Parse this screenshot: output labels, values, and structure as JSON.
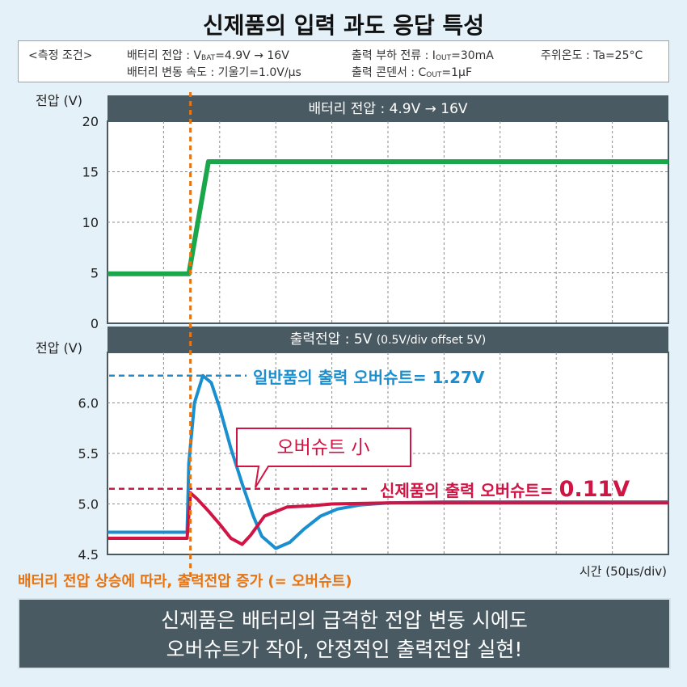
{
  "title": "신제품의 입력 과도 응답 특성",
  "conditions": {
    "label": "<측정 조건>",
    "battery_voltage_prefix": "배터리 전압 : V",
    "battery_voltage_sub": "BAT",
    "battery_voltage_value": "=4.9V → 16V",
    "load_current_prefix": "출력 부하 전류 : I",
    "load_current_sub": "OUT",
    "load_current_value": "=30mA",
    "ambient": "주위온도 : Ta=25°C",
    "slew": "배터리 변동 속도 : 기울기=1.0V/μs",
    "cap_prefix": "출력 콘덴서 : C",
    "cap_sub": "OUT",
    "cap_value": "=1μF"
  },
  "callout": "오버슈트 小",
  "input_note": "배터리 전압 상승에 따라, 출력전압 증가 (= 오버슈트)",
  "summary_line1": "신제품은 배터리의 급격한 전압 변동 시에도",
  "summary_line2": "오버슈트가 작아, 안정적인 출력전압 실현!",
  "colors": {
    "battery": "#1aa64a",
    "conventional": "#1a8fd0",
    "new_product": "#d01444",
    "orange": "#e8730f",
    "plot_bg": "#ffffff",
    "header_bg": "#4a5a63"
  },
  "chart_data": [
    {
      "type": "line",
      "header": "배터리 전압 : 4.9V → 16V",
      "ylabel": "전압 (V)",
      "ylim": [
        0,
        20
      ],
      "yticks": [
        "0",
        "5",
        "10",
        "15",
        "20"
      ],
      "xlim": [
        0,
        10
      ],
      "grid": true,
      "series": [
        {
          "x": [
            0,
            1.45,
            1.8,
            10
          ],
          "y": [
            4.9,
            4.9,
            16.0,
            16.0
          ]
        }
      ]
    },
    {
      "type": "line",
      "header_main": "출력전압 : 5V",
      "header_sub": "(0.5V/div offset 5V)",
      "ylabel": "전압 (V)",
      "xlabel": "시간 (50μs/div)",
      "ylim": [
        4.5,
        6.5
      ],
      "yticks": [
        "4.5",
        "5.0",
        "5.5",
        "6.0"
      ],
      "xlim": [
        0,
        10
      ],
      "grid": true,
      "annotations": [
        {
          "text": "일반품의 출력 오버슈트= 1.27V",
          "y": 6.27
        },
        {
          "text": "신제품의 출력 오버슈트= ",
          "value_text": "0.11V",
          "y": 5.15
        }
      ],
      "series": [
        {
          "name": "일반품",
          "x": [
            0,
            1.42,
            1.45,
            1.55,
            1.7,
            1.85,
            2.0,
            2.2,
            2.4,
            2.6,
            2.75,
            3.0,
            3.25,
            3.5,
            3.8,
            4.1,
            4.5,
            5.0,
            6.0,
            7.0,
            8.0,
            10.0
          ],
          "y": [
            4.72,
            4.72,
            5.4,
            6.0,
            6.27,
            6.2,
            5.95,
            5.55,
            5.2,
            4.88,
            4.68,
            4.56,
            4.62,
            4.75,
            4.88,
            4.95,
            4.99,
            5.01,
            5.02,
            5.02,
            5.02,
            5.02
          ]
        },
        {
          "name": "신제품",
          "x": [
            0,
            1.42,
            1.48,
            1.6,
            1.8,
            2.0,
            2.2,
            2.4,
            2.55,
            2.8,
            3.2,
            3.6,
            4.0,
            5.0,
            6.0,
            7.0,
            8.0,
            10.0
          ],
          "y": [
            4.66,
            4.66,
            5.11,
            5.05,
            4.93,
            4.8,
            4.66,
            4.6,
            4.69,
            4.88,
            4.97,
            4.98,
            5.0,
            5.01,
            5.01,
            5.01,
            5.01,
            5.01
          ]
        }
      ]
    }
  ]
}
